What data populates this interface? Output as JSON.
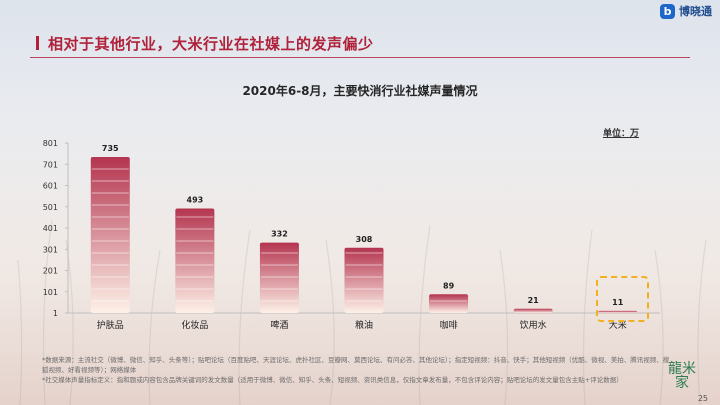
{
  "slide": {
    "title": "相对于其他行业，大米行业在社媒上的发声偏少",
    "logo_text": "博晓通",
    "page_number": "25",
    "stamp_text": "龍米家"
  },
  "chart_data": {
    "type": "bar",
    "title": "2020年6-8月，主要快消行业社媒声量情况",
    "unit": "单位：万",
    "categories": [
      "护肤品",
      "化妆品",
      "啤酒",
      "粮油",
      "咖啡",
      "饮用水",
      "大米"
    ],
    "values": [
      735,
      493,
      332,
      308,
      89,
      21,
      11
    ],
    "data_labels": [
      "735",
      "493",
      "332",
      "308",
      "89",
      "21",
      "11"
    ],
    "y_ticks": [
      "1",
      "101",
      "201",
      "301",
      "401",
      "501",
      "601",
      "701",
      "801"
    ],
    "y_tick_values": [
      1,
      101,
      201,
      301,
      401,
      501,
      601,
      701,
      801
    ],
    "ylim": [
      1,
      801
    ],
    "highlight_category": "大米",
    "colors": {
      "bar_top": "#b4344f",
      "bar_bottom": "#fdf1e8",
      "axis": "#bfbfbf",
      "highlight": "#f2b01e"
    },
    "legend": "none",
    "grid": false
  },
  "notes": [
    "*数据来源：主流社交（微博、微信、知乎、头条等）；贴吧论坛（百度贴吧、天涯论坛、虎扑社区、豆瓣网、莫西论坛、有问必答、其他论坛）；指定短视频：抖音、快手；其他短视频（优酷、微视、美拍、腾讯视频、搜狐视频、好看视频等）；网络媒体",
    "*社交媒体声量指标定义：指和题或内容包含品牌关键词的发文数量（适用于微博、微信、知乎、头条、短视频、资讯类信息，仅指文章发布量，不包含评论内容；贴吧论坛的发文量包含主贴+评论数据）"
  ]
}
